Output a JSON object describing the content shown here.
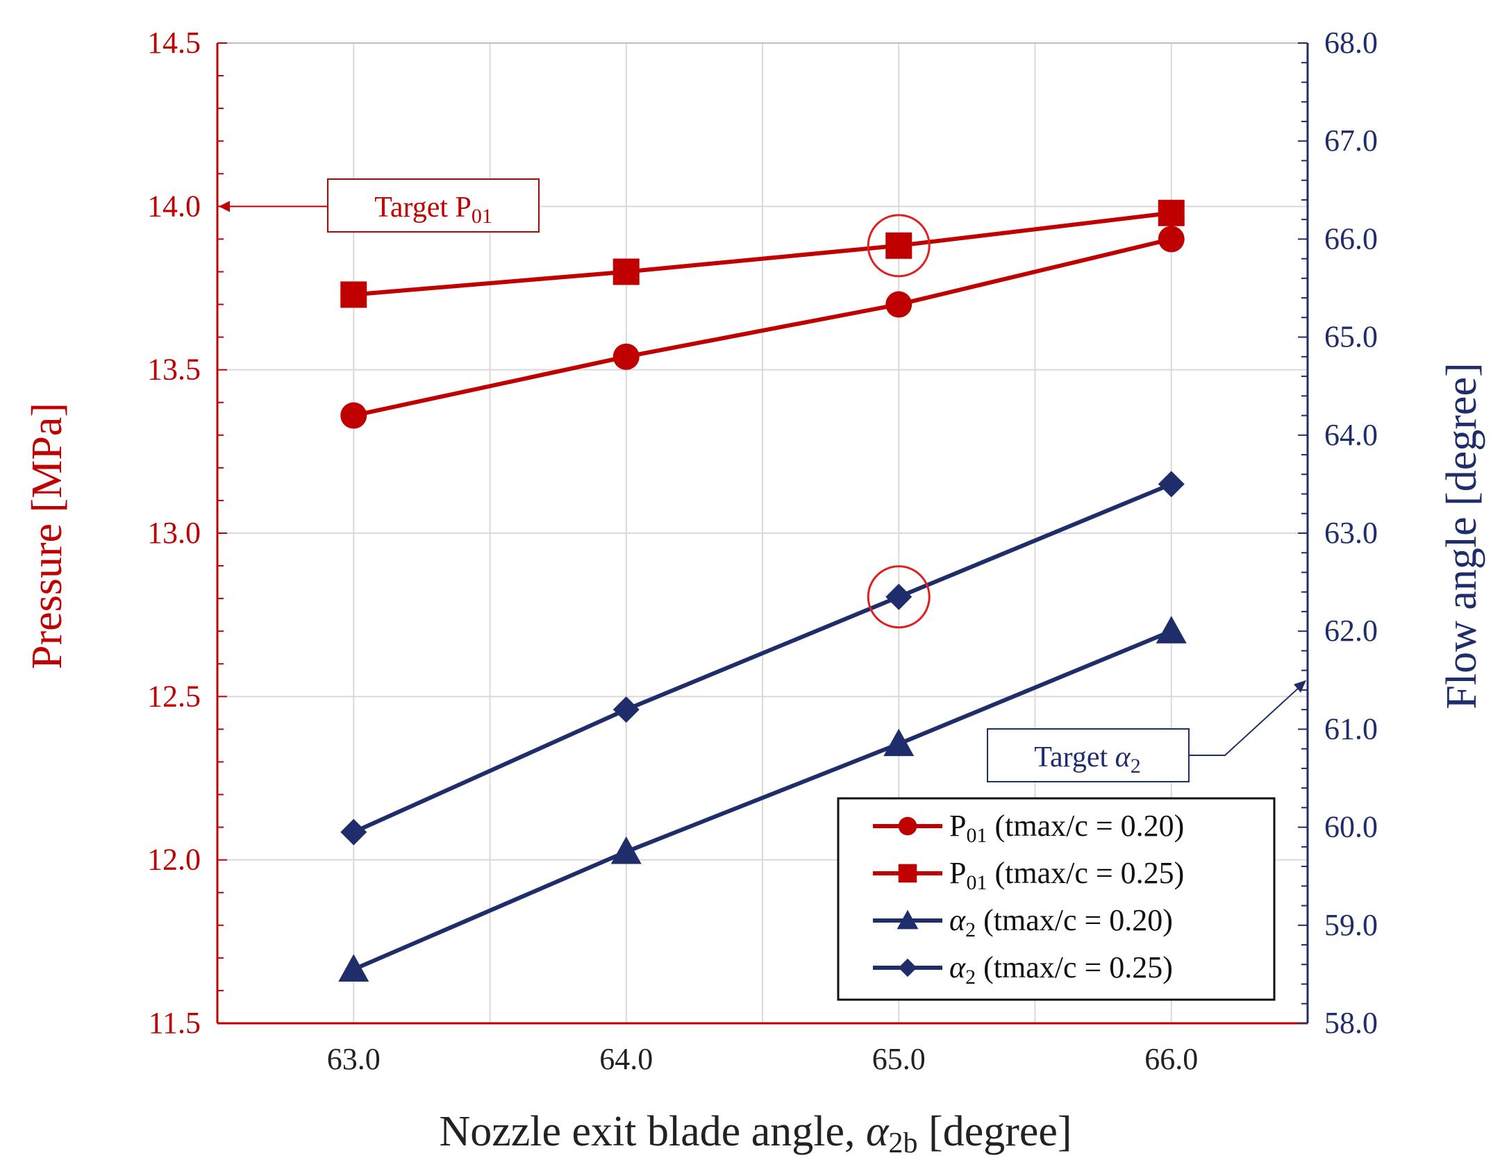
{
  "chart_data": {
    "type": "line",
    "xlabel": "Nozzle exit blade angle, α2b [degree]",
    "xlabel_parts": {
      "main": "Nozzle exit blade angle, ",
      "symbol": "α",
      "sub": "2b",
      "unit": " [degree]"
    },
    "ylabel_left": "Pressure [MPa]",
    "ylabel_right": "Flow angle [degree]",
    "xlim": [
      62.5,
      66.5
    ],
    "ylim_left": [
      11.5,
      14.5
    ],
    "ylim_right": [
      58.0,
      68.0
    ],
    "x_ticks": [
      "63.0",
      "64.0",
      "65.0",
      "66.0"
    ],
    "x_tick_values": [
      63,
      64,
      65,
      66
    ],
    "y_left_ticks": [
      "11.5",
      "12.0",
      "12.5",
      "13.0",
      "13.5",
      "14.0",
      "14.5"
    ],
    "y_left_tick_values": [
      11.5,
      12.0,
      12.5,
      13.0,
      13.5,
      14.0,
      14.5
    ],
    "y_right_ticks": [
      "58.0",
      "59.0",
      "60.0",
      "61.0",
      "62.0",
      "63.0",
      "64.0",
      "65.0",
      "66.0",
      "67.0",
      "68.0"
    ],
    "y_right_tick_values": [
      58,
      59,
      60,
      61,
      62,
      63,
      64,
      65,
      66,
      67,
      68
    ],
    "grid": true,
    "x": [
      63,
      64,
      65,
      66
    ],
    "series": [
      {
        "name": "P01 (tmax/c = 0.20)",
        "label_main": "P",
        "label_sub": "01",
        "label_rest": "(tmax/c = 0.20)",
        "axis": "left",
        "marker": "circle",
        "color": "#C00000",
        "values": [
          13.36,
          13.54,
          13.7,
          13.9
        ]
      },
      {
        "name": "P01 (tmax/c = 0.25)",
        "label_main": "P",
        "label_sub": "01",
        "label_rest": "(tmax/c = 0.25)",
        "axis": "left",
        "marker": "square",
        "color": "#C00000",
        "values": [
          13.73,
          13.8,
          13.88,
          13.98
        ]
      },
      {
        "name": "α2 (tmax/c = 0.20)",
        "label_main": "α",
        "label_sub": "2",
        "label_rest": "(tmax/c = 0.20)",
        "axis": "right",
        "marker": "triangle",
        "color": "#1F2D6B",
        "values": [
          58.55,
          59.75,
          60.85,
          62.0
        ]
      },
      {
        "name": "α2 (tmax/c = 0.25)",
        "label_main": "α",
        "label_sub": "2",
        "label_rest": "(tmax/c = 0.25)",
        "axis": "right",
        "marker": "diamond",
        "color": "#1F2D6B",
        "values": [
          59.95,
          61.2,
          62.35,
          63.5
        ]
      }
    ],
    "annotations": [
      {
        "text": "Target P01",
        "text_main": "Target P",
        "text_sub": "01",
        "color": "#C00000",
        "points_to": {
          "axis": "left",
          "x": 62.5,
          "y": 14.0
        }
      },
      {
        "text": "Target α2",
        "text_main": "Target α",
        "text_sub": "2",
        "color": "#1F2D6B",
        "points_to": {
          "axis": "right",
          "x": 66.5,
          "y": 61.5
        }
      }
    ],
    "highlights": [
      {
        "series": 1,
        "x": 65,
        "color": "#E02020"
      },
      {
        "series": 3,
        "x": 65,
        "color": "#E02020"
      }
    ],
    "legend_position": "bottom-right",
    "colors": {
      "pressure": "#C00000",
      "flow": "#1F2D6B",
      "grid": "#D9D9D9",
      "highlight": "#E02020"
    }
  }
}
